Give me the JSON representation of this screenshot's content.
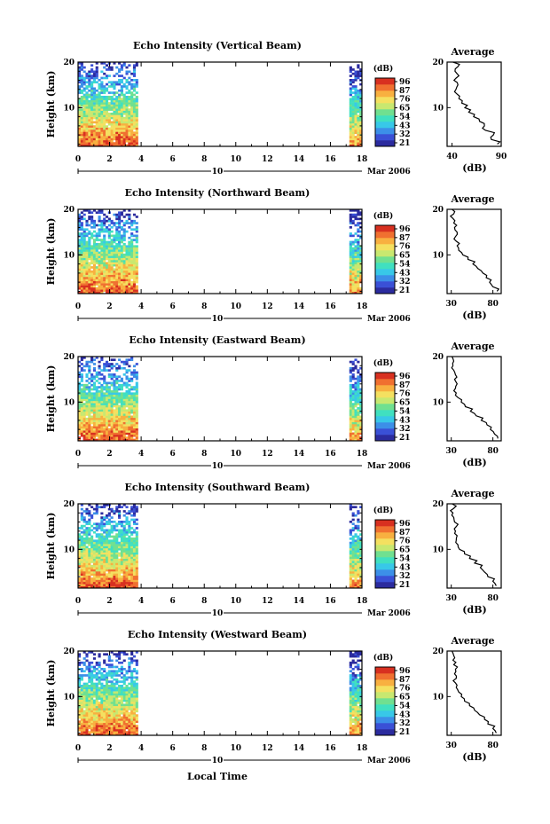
{
  "time_axis_label": "Local Time",
  "date_label": "Mar 2006",
  "date_day_marker": "10",
  "cbar_unit": "(dB)",
  "avg_title": "Average",
  "avg_xlabel": "(dB)",
  "height_label": "Height (km)",
  "colors": {
    "scale": [
      "#2b2b9e",
      "#3a50d6",
      "#3c8fe8",
      "#38c8e8",
      "#40e0c0",
      "#70e090",
      "#c8e870",
      "#f4e060",
      "#f8b040",
      "#f07030",
      "#d83020"
    ]
  },
  "chart_data": [
    {
      "type": "heatmap",
      "title": "Echo Intensity (Vertical Beam)",
      "xlabel": "",
      "ylabel": "Height (km)",
      "xlim": [
        0,
        18
      ],
      "ylim": [
        1.5,
        20
      ],
      "xticks": [
        "0",
        "2",
        "4",
        "6",
        "8",
        "10",
        "12",
        "14",
        "16",
        "18"
      ],
      "yticks": [
        "20",
        "10"
      ],
      "data_intervals_hours": [
        [
          0,
          3.8
        ],
        [
          17.2,
          18
        ]
      ],
      "colorbar": {
        "unit": "(dB)",
        "ticks": [
          "96",
          "87",
          "76",
          "65",
          "54",
          "43",
          "32",
          "21"
        ]
      },
      "profile": {
        "title": "Average",
        "xlabel": "(dB)",
        "xlim": [
          35,
          90
        ],
        "xticks": [
          "40",
          "90"
        ],
        "yticks": [
          "20",
          "10"
        ],
        "height_km": [
          2,
          3,
          4,
          5,
          6,
          7,
          8,
          9,
          10,
          11,
          12,
          13,
          14,
          15,
          16,
          17,
          18,
          19,
          20
        ],
        "db": [
          86,
          80,
          82,
          74,
          73,
          68,
          62,
          57,
          53,
          50,
          47,
          45,
          44,
          46,
          42,
          47,
          43,
          46,
          41
        ]
      }
    },
    {
      "type": "heatmap",
      "title": "Echo Intensity (Northward Beam)",
      "xlabel": "",
      "ylabel": "Height (km)",
      "xlim": [
        0,
        18
      ],
      "ylim": [
        1.5,
        20
      ],
      "xticks": [
        "0",
        "2",
        "4",
        "6",
        "8",
        "10",
        "12",
        "14",
        "16",
        "18"
      ],
      "yticks": [
        "20",
        "10"
      ],
      "data_intervals_hours": [
        [
          0,
          3.8
        ],
        [
          17.2,
          18
        ]
      ],
      "colorbar": {
        "unit": "(dB)",
        "ticks": [
          "96",
          "87",
          "76",
          "65",
          "54",
          "43",
          "32",
          "21"
        ]
      },
      "profile": {
        "title": "Average",
        "xlabel": "(dB)",
        "xlim": [
          25,
          90
        ],
        "xticks": [
          "30",
          "80"
        ],
        "yticks": [
          "20",
          "10"
        ],
        "height_km": [
          2,
          3,
          4,
          5,
          6,
          7,
          8,
          9,
          10,
          11,
          12,
          13,
          14,
          15,
          16,
          17,
          18,
          19,
          20
        ],
        "db": [
          85,
          80,
          76,
          72,
          68,
          62,
          56,
          50,
          44,
          39,
          37,
          36,
          35,
          37,
          34,
          33,
          32,
          33,
          31
        ]
      }
    },
    {
      "type": "heatmap",
      "title": "Echo Intensity (Eastward Beam)",
      "xlabel": "",
      "ylabel": "Height (km)",
      "xlim": [
        0,
        18
      ],
      "ylim": [
        1.5,
        20
      ],
      "xticks": [
        "0",
        "2",
        "4",
        "6",
        "8",
        "10",
        "12",
        "14",
        "16",
        "18"
      ],
      "yticks": [
        "20",
        "10"
      ],
      "data_intervals_hours": [
        [
          0,
          3.8
        ],
        [
          17.2,
          18
        ]
      ],
      "colorbar": {
        "unit": "(dB)",
        "ticks": [
          "96",
          "87",
          "76",
          "65",
          "54",
          "43",
          "32",
          "21"
        ]
      },
      "profile": {
        "title": "Average",
        "xlabel": "(dB)",
        "xlim": [
          25,
          90
        ],
        "xticks": [
          "30",
          "80"
        ],
        "yticks": [
          "20",
          "10"
        ],
        "height_km": [
          2,
          3,
          4,
          5,
          6,
          7,
          8,
          9,
          10,
          11,
          12,
          13,
          14,
          15,
          16,
          17,
          18,
          19,
          20
        ],
        "db": [
          86,
          82,
          77,
          73,
          66,
          60,
          53,
          47,
          42,
          38,
          36,
          35,
          37,
          34,
          35,
          33,
          32,
          33,
          31
        ]
      }
    },
    {
      "type": "heatmap",
      "title": "Echo Intensity (Southward Beam)",
      "xlabel": "",
      "ylabel": "Height (km)",
      "xlim": [
        0,
        18
      ],
      "ylim": [
        1.5,
        20
      ],
      "xticks": [
        "0",
        "2",
        "4",
        "6",
        "8",
        "10",
        "12",
        "14",
        "16",
        "18"
      ],
      "yticks": [
        "20",
        "10"
      ],
      "data_intervals_hours": [
        [
          0,
          3.8
        ],
        [
          17.2,
          18
        ]
      ],
      "colorbar": {
        "unit": "(dB)",
        "ticks": [
          "96",
          "87",
          "76",
          "65",
          "54",
          "43",
          "32",
          "21"
        ]
      },
      "profile": {
        "title": "Average",
        "xlabel": "(dB)",
        "xlim": [
          25,
          90
        ],
        "xticks": [
          "30",
          "80"
        ],
        "yticks": [
          "20",
          "10"
        ],
        "height_km": [
          2,
          3,
          4,
          5,
          6,
          7,
          8,
          9,
          10,
          11,
          12,
          13,
          14,
          15,
          16,
          17,
          18,
          19,
          20
        ],
        "db": [
          84,
          80,
          74,
          70,
          65,
          58,
          52,
          46,
          40,
          38,
          36,
          37,
          35,
          36,
          34,
          33,
          32,
          33,
          31
        ]
      }
    },
    {
      "type": "heatmap",
      "title": "Echo Intensity (Westward Beam)",
      "xlabel": "Local Time",
      "ylabel": "Height (km)",
      "xlim": [
        0,
        18
      ],
      "ylim": [
        1.5,
        20
      ],
      "xticks": [
        "0",
        "2",
        "4",
        "6",
        "8",
        "10",
        "12",
        "14",
        "16",
        "18"
      ],
      "yticks": [
        "20",
        "10"
      ],
      "data_intervals_hours": [
        [
          0,
          3.8
        ],
        [
          17.2,
          18
        ]
      ],
      "colorbar": {
        "unit": "(dB)",
        "ticks": [
          "96",
          "87",
          "76",
          "65",
          "54",
          "43",
          "32",
          "21"
        ]
      },
      "profile": {
        "title": "Average",
        "xlabel": "(dB)",
        "xlim": [
          25,
          90
        ],
        "xticks": [
          "30",
          "80"
        ],
        "yticks": [
          "20",
          "10"
        ],
        "height_km": [
          2,
          3,
          4,
          5,
          6,
          7,
          8,
          9,
          10,
          11,
          12,
          13,
          14,
          15,
          16,
          17,
          18,
          19,
          20
        ],
        "db": [
          84,
          80,
          74,
          70,
          64,
          58,
          52,
          46,
          42,
          39,
          36,
          35,
          36,
          34,
          35,
          33,
          32,
          33,
          31
        ]
      }
    }
  ]
}
